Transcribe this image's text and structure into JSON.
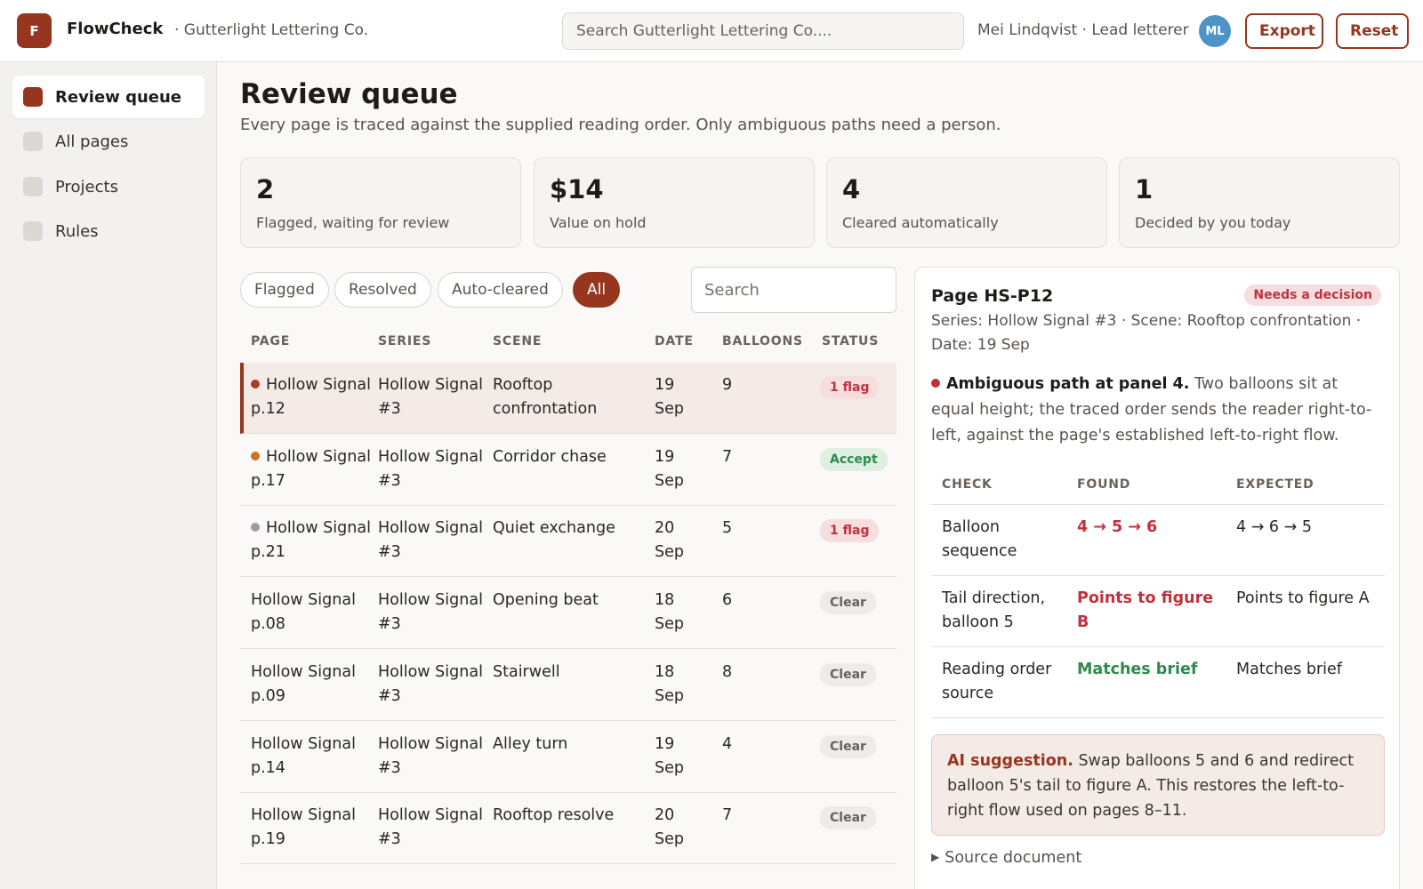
{
  "header": {
    "logo_letter": "F",
    "app_name": "FlowCheck",
    "org_name": "· Gutterlight Lettering Co.",
    "search_placeholder": "Search Gutterlight Lettering Co....",
    "user": "Mei Lindqvist · Lead letterer",
    "avatar_initials": "ML",
    "export_label": "Export",
    "reset_label": "Reset"
  },
  "sidebar": {
    "items": [
      {
        "label": "Review queue",
        "active": true
      },
      {
        "label": "All pages",
        "active": false
      },
      {
        "label": "Projects",
        "active": false
      },
      {
        "label": "Rules",
        "active": false
      }
    ]
  },
  "main": {
    "title": "Review queue",
    "subtitle": "Every page is traced against the supplied reading order. Only ambiguous paths need a person."
  },
  "stats": [
    {
      "value": "2",
      "label": "Flagged, waiting for review"
    },
    {
      "value": "$14",
      "label": "Value on hold"
    },
    {
      "value": "4",
      "label": "Cleared automatically"
    },
    {
      "value": "1",
      "label": "Decided by you today"
    }
  ],
  "filters": [
    {
      "label": "Flagged",
      "active": false
    },
    {
      "label": "Resolved",
      "active": false
    },
    {
      "label": "Auto-cleared",
      "active": false
    },
    {
      "label": "All",
      "active": true
    }
  ],
  "list_search_placeholder": "Search",
  "table": {
    "columns": [
      "PAGE",
      "SERIES",
      "SCENE",
      "DATE",
      "BALLOONS",
      "STATUS"
    ],
    "rows": [
      {
        "page": "Hollow Signal p.12",
        "series": "Hollow Signal #3",
        "scene": "Rooftop confrontation",
        "date": "19 Sep",
        "balloons": "9",
        "status": "1 flag",
        "status_kind": "flag",
        "dot": "#b0352a",
        "selected": true
      },
      {
        "page": "Hollow Signal p.17",
        "series": "Hollow Signal #3",
        "scene": "Corridor chase",
        "date": "19 Sep",
        "balloons": "7",
        "status": "Accept",
        "status_kind": "accept",
        "dot": "#c87420",
        "selected": false
      },
      {
        "page": "Hollow Signal p.21",
        "series": "Hollow Signal #3",
        "scene": "Quiet exchange",
        "date": "20 Sep",
        "balloons": "5",
        "status": "1 flag",
        "status_kind": "flag",
        "dot": "#9a9aa8",
        "selected": false
      },
      {
        "page": "Hollow Signal p.08",
        "series": "Hollow Signal #3",
        "scene": "Opening beat",
        "date": "18 Sep",
        "balloons": "6",
        "status": "Clear",
        "status_kind": "clear",
        "dot": null,
        "selected": false
      },
      {
        "page": "Hollow Signal p.09",
        "series": "Hollow Signal #3",
        "scene": "Stairwell",
        "date": "18 Sep",
        "balloons": "8",
        "status": "Clear",
        "status_kind": "clear",
        "dot": null,
        "selected": false
      },
      {
        "page": "Hollow Signal p.14",
        "series": "Hollow Signal #3",
        "scene": "Alley turn",
        "date": "19 Sep",
        "balloons": "4",
        "status": "Clear",
        "status_kind": "clear",
        "dot": null,
        "selected": false
      },
      {
        "page": "Hollow Signal p.19",
        "series": "Hollow Signal #3",
        "scene": "Rooftop resolve",
        "date": "20 Sep",
        "balloons": "7",
        "status": "Clear",
        "status_kind": "clear",
        "dot": null,
        "selected": false
      }
    ]
  },
  "detail": {
    "title": "Page HS-P12",
    "badge": "Needs a decision",
    "meta": "Series: Hollow Signal #3 · Scene: Rooftop confrontation · Date: 19 Sep",
    "highlight": "Ambiguous path at panel 4.",
    "description": "Two balloons sit at equal height; the traced order sends the reader right-to-left, against the page's established left-to-right flow.",
    "columns": [
      "CHECK",
      "FOUND",
      "EXPECTED"
    ],
    "checks": [
      {
        "check": "Balloon sequence",
        "found": "4 → 5 → 6",
        "expected": "4 → 6 → 5",
        "ok": false
      },
      {
        "check": "Tail direction, balloon 5",
        "found": "Points to figure B",
        "expected": "Points to figure A",
        "ok": false
      },
      {
        "check": "Reading order source",
        "found": "Matches brief",
        "expected": "Matches brief",
        "ok": true
      }
    ],
    "ai_label": "AI suggestion.",
    "ai_text": "Swap balloons 5 and 6 and redirect balloon 5's tail to figure A. This restores the left-to-right flow used on pages 8–11.",
    "source_label": "Source document"
  },
  "colors": {
    "accent": "#97361f",
    "flag": "#c0313f",
    "ok": "#2f8a4c",
    "avatar": "#4d93c8"
  }
}
